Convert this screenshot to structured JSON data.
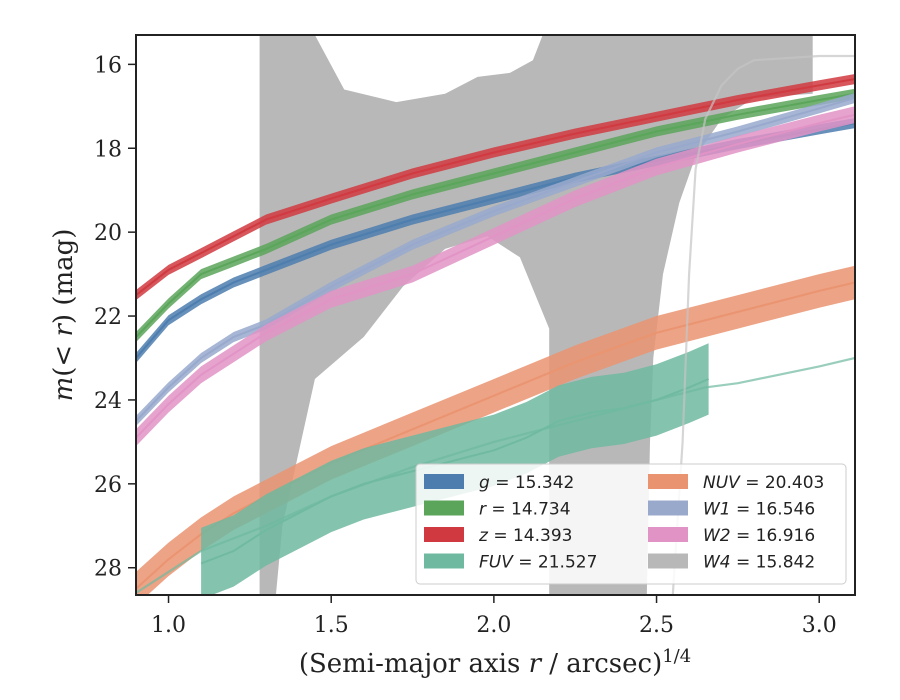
{
  "chart_data": {
    "type": "line",
    "title": "",
    "xlabel": "(Semi-major axis r / arcsec)^{1/4}",
    "ylabel": "m(< r) (mag)",
    "xlim": [
      0.9,
      3.11
    ],
    "ylim": [
      28.65,
      15.3
    ],
    "y_inverted": true,
    "grid": false,
    "legend_position": "lower-right",
    "xticks": [
      1.0,
      1.5,
      2.0,
      2.5,
      3.0
    ],
    "xtick_labels": [
      "1.0",
      "1.5",
      "2.0",
      "2.5",
      "3.0"
    ],
    "yticks": [
      16,
      18,
      20,
      22,
      24,
      26,
      28
    ],
    "ytick_labels": [
      "16",
      "18",
      "20",
      "22",
      "24",
      "26",
      "28"
    ],
    "legend": [
      {
        "label": "g = 15.342",
        "color": "#4c7dae"
      },
      {
        "label": "r = 14.734",
        "color": "#5aa55a"
      },
      {
        "label": "z = 14.393",
        "color": "#d0393f"
      },
      {
        "label": "FUV = 21.527",
        "color": "#6fb9a0"
      },
      {
        "label": "NUV = 20.403",
        "color": "#ea9370"
      },
      {
        "label": "W1 = 16.546",
        "color": "#98a9cc"
      },
      {
        "label": "W2 = 16.916",
        "color": "#e193c5"
      },
      {
        "label": "W4 = 15.842",
        "color": "#b8b8b8"
      }
    ],
    "series": [
      {
        "name": "g",
        "color": "#4c7dae",
        "x": [
          0.9,
          1.0,
          1.1,
          1.2,
          1.3,
          1.5,
          1.75,
          2.0,
          2.25,
          2.5,
          2.75,
          3.0,
          3.11
        ],
        "y": [
          23.0,
          22.1,
          21.6,
          21.2,
          20.9,
          20.3,
          19.7,
          19.2,
          18.7,
          18.3,
          17.9,
          17.55,
          17.4
        ],
        "band": 0.12
      },
      {
        "name": "r",
        "color": "#5aa55a",
        "x": [
          0.9,
          1.0,
          1.1,
          1.2,
          1.3,
          1.5,
          1.75,
          2.0,
          2.25,
          2.5,
          2.75,
          3.0,
          3.11
        ],
        "y": [
          22.5,
          21.7,
          21.0,
          20.7,
          20.4,
          19.7,
          19.1,
          18.6,
          18.1,
          17.6,
          17.2,
          16.85,
          16.7
        ],
        "band": 0.12
      },
      {
        "name": "z",
        "color": "#d0393f",
        "x": [
          0.9,
          1.0,
          1.1,
          1.2,
          1.3,
          1.5,
          1.75,
          2.0,
          2.25,
          2.5,
          2.75,
          3.0,
          3.11
        ],
        "y": [
          21.5,
          20.9,
          20.5,
          20.1,
          19.7,
          19.2,
          18.6,
          18.1,
          17.65,
          17.25,
          16.85,
          16.5,
          16.35
        ],
        "band": 0.12
      },
      {
        "name": "W1",
        "color": "#98a9cc",
        "x": [
          0.9,
          1.0,
          1.1,
          1.2,
          1.3,
          1.5,
          1.75,
          2.0,
          2.25,
          2.5,
          2.75,
          3.0,
          3.11
        ],
        "y": [
          24.5,
          23.7,
          23.0,
          22.5,
          22.2,
          21.3,
          20.3,
          19.5,
          18.8,
          18.1,
          17.6,
          17.05,
          16.8
        ],
        "band": 0.12
      },
      {
        "name": "W2",
        "color": "#e193c5",
        "x": [
          0.9,
          1.0,
          1.1,
          1.2,
          1.3,
          1.5,
          1.75,
          2.0,
          2.25,
          2.5,
          2.75,
          3.0,
          3.11
        ],
        "y": [
          24.9,
          24.1,
          23.4,
          22.9,
          22.4,
          21.6,
          21.0,
          20.1,
          19.2,
          18.45,
          17.9,
          17.4,
          17.2
        ],
        "band": 0.2
      },
      {
        "name": "NUV",
        "color": "#ea9370",
        "x": [
          0.9,
          1.0,
          1.1,
          1.2,
          1.3,
          1.5,
          1.75,
          2.0,
          2.25,
          2.5,
          2.75,
          3.0,
          3.11
        ],
        "y": [
          28.5,
          27.8,
          27.2,
          26.7,
          26.3,
          25.5,
          24.7,
          23.9,
          23.1,
          22.4,
          21.9,
          21.4,
          21.2
        ],
        "band": 0.4
      },
      {
        "name": "FUV",
        "color": "#6fb9a0",
        "x": [
          0.9,
          1.0,
          1.1,
          1.2,
          1.3,
          1.5,
          1.75,
          2.0,
          2.25,
          2.5,
          2.65,
          2.75,
          3.0,
          3.11
        ],
        "y": [
          28.6,
          28.1,
          27.6,
          27.3,
          27.0,
          26.3,
          25.6,
          25.0,
          24.5,
          24.0,
          23.7,
          23.6,
          23.2,
          23.0
        ],
        "band": 0.0
      },
      {
        "name": "FUV",
        "color": "#6fb9a0",
        "x": [
          1.1,
          1.2,
          1.3,
          1.4,
          1.5,
          1.6,
          1.7,
          1.8,
          1.9,
          2.0,
          2.1,
          2.2,
          2.3,
          2.4,
          2.5,
          2.6,
          2.66
        ],
        "y": [
          27.9,
          27.6,
          27.1,
          26.7,
          26.3,
          26.0,
          25.8,
          25.6,
          25.4,
          25.2,
          24.9,
          24.5,
          24.3,
          24.2,
          24.0,
          23.7,
          23.5
        ],
        "band": 0.85
      },
      {
        "name": "W4",
        "color": "#c4c4c4",
        "x": [
          2.55,
          2.58,
          2.6,
          2.62,
          2.65,
          2.7,
          2.75,
          2.8,
          2.9,
          3.0,
          3.11
        ],
        "y": [
          28.65,
          25.0,
          21.0,
          18.5,
          17.3,
          16.5,
          16.1,
          15.9,
          15.85,
          15.8,
          15.8
        ],
        "band": 0.0
      }
    ],
    "w4_uncertainty_region": [
      [
        1.28,
        28.65
      ],
      [
        1.28,
        15.3
      ],
      [
        1.45,
        15.3
      ],
      [
        1.54,
        16.6
      ],
      [
        1.7,
        16.9
      ],
      [
        1.85,
        16.7
      ],
      [
        1.95,
        16.3
      ],
      [
        2.05,
        16.2
      ],
      [
        2.12,
        15.9
      ],
      [
        2.15,
        15.3
      ],
      [
        2.98,
        15.3
      ],
      [
        2.98,
        16.7
      ],
      [
        2.8,
        16.8
      ],
      [
        2.7,
        17.3
      ],
      [
        2.62,
        18.2
      ],
      [
        2.57,
        19.3
      ],
      [
        2.52,
        21.0
      ],
      [
        2.49,
        23.0
      ],
      [
        2.48,
        25.0
      ],
      [
        2.47,
        28.65
      ],
      [
        2.17,
        28.65
      ],
      [
        2.17,
        22.3
      ],
      [
        2.08,
        20.6
      ],
      [
        1.98,
        20.1
      ],
      [
        1.85,
        20.4
      ],
      [
        1.72,
        21.3
      ],
      [
        1.6,
        22.5
      ],
      [
        1.45,
        23.5
      ],
      [
        1.35,
        27.0
      ],
      [
        1.33,
        28.65
      ]
    ]
  }
}
